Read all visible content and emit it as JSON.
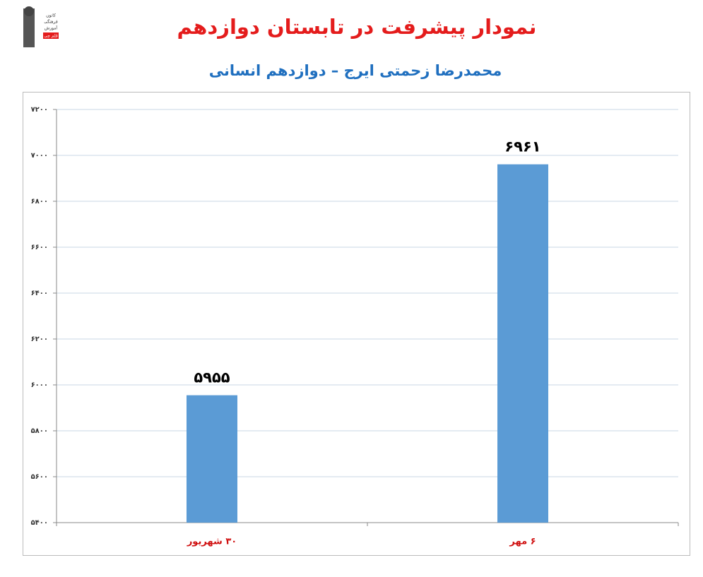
{
  "logo": {
    "lines": [
      "کانون",
      "فرهنگی",
      "آموزش",
      "قلم چی"
    ]
  },
  "chart_data": {
    "type": "bar",
    "title": "نمودار پیشرفت در تابستان دوازدهم",
    "subtitle": "محمدرضا زحمتی ایرج – دوازدهم انسانی",
    "categories": [
      "۳۰ شهریور",
      "۶ مهر"
    ],
    "values": [
      5955,
      6961
    ],
    "value_labels": [
      "۵۹۵۵",
      "۶۹۶۱"
    ],
    "color": "#5b9bd5",
    "ylim": [
      5400,
      7200
    ],
    "yticks": [
      {
        "value": 5400,
        "label": "۵۴۰۰"
      },
      {
        "value": 5600,
        "label": "۵۶۰۰"
      },
      {
        "value": 5800,
        "label": "۵۸۰۰"
      },
      {
        "value": 6000,
        "label": "۶۰۰۰"
      },
      {
        "value": 6200,
        "label": "۶۲۰۰"
      },
      {
        "value": 6400,
        "label": "۶۴۰۰"
      },
      {
        "value": 6600,
        "label": "۶۶۰۰"
      },
      {
        "value": 6800,
        "label": "۶۸۰۰"
      },
      {
        "value": 7000,
        "label": "۷۰۰۰"
      },
      {
        "value": 7200,
        "label": "۷۲۰۰"
      }
    ],
    "grid": true
  }
}
